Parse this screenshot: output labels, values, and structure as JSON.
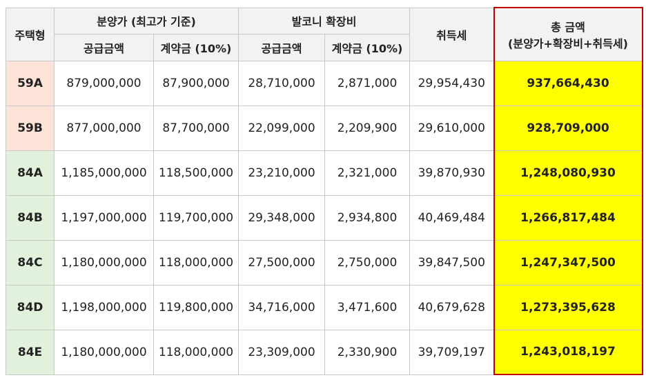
{
  "table": {
    "header": {
      "type": "주택형",
      "price_group": "분양가 (최고가 기준)",
      "balcony_group": "발코니 확장비",
      "tax": "취득세",
      "total_title": "총 금액",
      "total_subtitle": "(분양가+확장비+취득세)",
      "sub": [
        "공급금액",
        "계약금 (10%)",
        "공급금액",
        "계약금 (10%)"
      ]
    },
    "rows": [
      [
        "59A",
        "879,000,000",
        "87,900,000",
        "28,710,000",
        "2,871,000",
        "29,954,430",
        "937,664,430"
      ],
      [
        "59B",
        "877,000,000",
        "87,700,000",
        "22,099,000",
        "2,209,900",
        "29,610,000",
        "928,709,000"
      ],
      [
        "84A",
        "1,185,000,000",
        "118,500,000",
        "23,210,000",
        "2,321,000",
        "39,870,930",
        "1,248,080,930"
      ],
      [
        "84B",
        "1,197,000,000",
        "119,700,000",
        "29,348,000",
        "2,934,800",
        "40,469,484",
        "1,266,817,484"
      ],
      [
        "84C",
        "1,180,000,000",
        "118,000,000",
        "27,500,000",
        "2,750,000",
        "39,847,500",
        "1,247,347,500"
      ],
      [
        "84D",
        "1,198,000,000",
        "119,800,000",
        "34,716,000",
        "3,471,600",
        "40,679,628",
        "1,273,395,628"
      ],
      [
        "84E",
        "1,180,000,000",
        "118,000,000",
        "23,309,000",
        "2,330,900",
        "39,709,197",
        "1,243,018,197"
      ]
    ]
  }
}
